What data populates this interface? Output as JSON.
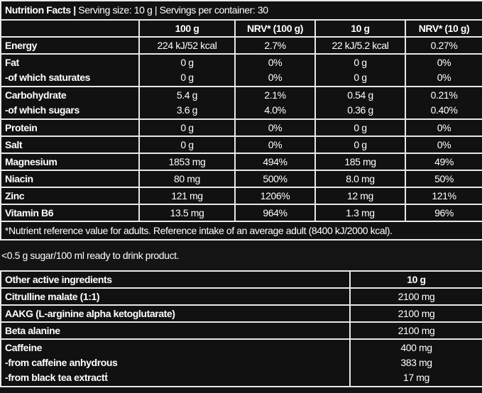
{
  "title": {
    "bold": "Nutrition Facts |",
    "rest": " Serving size: 10 g | Servings per container: 30"
  },
  "headers": [
    "100 g",
    "NRV* (100 g)",
    "10 g",
    "NRV* (10 g)"
  ],
  "rows": [
    {
      "label": "Energy",
      "v": [
        "224 kJ/52 kcal",
        "2.7%",
        "22 kJ/5.2 kcal",
        "0.27%"
      ]
    },
    {
      "label": "Fat",
      "sub": "-of which saturates",
      "v": [
        "0 g",
        "0%",
        "0 g",
        "0%"
      ],
      "s": [
        "0 g",
        "0%",
        "0 g",
        "0%"
      ]
    },
    {
      "label": "Carbohydrate",
      "sub": "-of which sugars",
      "v": [
        "5.4 g",
        "2.1%",
        "0.54 g",
        "0.21%"
      ],
      "s": [
        "3.6 g",
        "4.0%",
        "0.36 g",
        "0.40%"
      ]
    },
    {
      "label": "Protein",
      "v": [
        "0 g",
        "0%",
        "0 g",
        "0%"
      ]
    },
    {
      "label": "Salt",
      "v": [
        "0 g",
        "0%",
        "0 g",
        "0%"
      ]
    },
    {
      "label": "Magnesium",
      "v": [
        "1853 mg",
        "494%",
        "185 mg",
        "49%"
      ]
    },
    {
      "label": "Niacin",
      "v": [
        "80 mg",
        "500%",
        "8.0 mg",
        "50%"
      ]
    },
    {
      "label": "Zinc",
      "v": [
        "121 mg",
        "1206%",
        "12 mg",
        "121%"
      ]
    },
    {
      "label": "Vitamin B6",
      "v": [
        "13.5 mg",
        "964%",
        "1.3 mg",
        "96%"
      ]
    }
  ],
  "footnote": "*Nutrient reference value for adults. Reference intake of an average adult (8400 kJ/2000 kcal).",
  "sugar_note": "<0.5 g sugar/100 ml ready to drink product.",
  "other": {
    "header": [
      "Other active ingredients",
      "10 g"
    ],
    "rows": [
      {
        "label": "Citrulline malate (1:1)",
        "v": "2100 mg"
      },
      {
        "label": "AAKG (L-arginine alpha ketoglutarate)",
        "v": "2100 mg"
      },
      {
        "label": "Beta alanine",
        "v": "2100 mg"
      }
    ],
    "caffeine": {
      "labels": [
        "Caffeine",
        "-from caffeine anhydrous",
        "-from black tea extract"
      ],
      "mark": "ṫ",
      "values": [
        "400 mg",
        "383 mg",
        "17 mg"
      ]
    }
  }
}
